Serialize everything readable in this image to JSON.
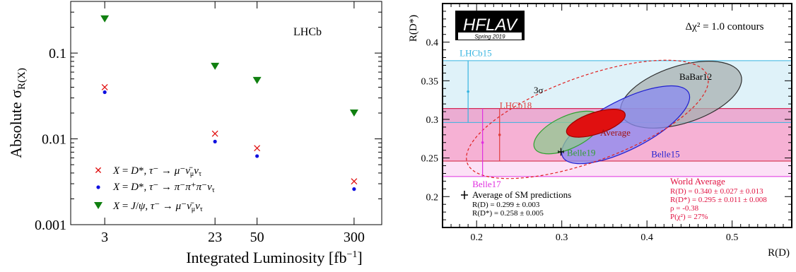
{
  "chart_data": [
    {
      "type": "scatter",
      "title": "",
      "xlabel": "Integrated Luminosity [fb⁻¹]",
      "ylabel": "Absolute σ_R(X)",
      "annotation": "LHCb",
      "x_scale": "log",
      "y_scale": "log",
      "xlim": [
        1.6,
        500
      ],
      "ylim": [
        0.001,
        0.4
      ],
      "x_ticks": [
        3,
        23,
        50,
        300
      ],
      "x_tick_labels": [
        "3",
        "23",
        "50",
        "300"
      ],
      "y_ticks": [
        0.001,
        0.01,
        0.1
      ],
      "y_tick_labels": [
        "0.001",
        "0.01",
        "0.1"
      ],
      "legend_position": "bottom-left",
      "series": [
        {
          "name": "X = D*, τ⁻ → μ⁻ν̄_μν_τ",
          "marker": "x",
          "color": "#e01010",
          "x": [
            3,
            23,
            50,
            300
          ],
          "y": [
            0.04,
            0.0115,
            0.0078,
            0.0032
          ]
        },
        {
          "name": "X = D*, τ⁻ → π⁻π⁺π⁻ν_τ",
          "marker": "dot",
          "color": "#1010e0",
          "x": [
            3,
            23,
            50,
            300
          ],
          "y": [
            0.035,
            0.0093,
            0.0063,
            0.0026
          ]
        },
        {
          "name": "X = J/ψ, τ⁻ → μ⁻ν̄_μν_τ",
          "marker": "triangle-down",
          "color": "#108010",
          "x": [
            3,
            23,
            50,
            300
          ],
          "y": [
            0.25,
            0.07,
            0.048,
            0.02
          ]
        }
      ]
    },
    {
      "type": "scatter",
      "title": "",
      "xlabel": "R(D)",
      "ylabel": "R(D*)",
      "xlim": [
        0.16,
        0.57
      ],
      "ylim": [
        0.16,
        0.45
      ],
      "x_ticks": [
        0.2,
        0.3,
        0.4,
        0.5
      ],
      "x_tick_labels": [
        "0.2",
        "0.3",
        "0.4",
        "0.5"
      ],
      "y_ticks": [
        0.2,
        0.25,
        0.3,
        0.35,
        0.4
      ],
      "y_tick_labels": [
        "0.2",
        "0.25",
        "0.3",
        "0.35",
        "0.4"
      ],
      "logo": {
        "name": "HFLAV",
        "subtitle": "Spring 2019"
      },
      "contour_label": "Δχ² = 1.0 contours",
      "sigma_label": "3σ",
      "bands": [
        {
          "label": "LHCb15",
          "axis": "y",
          "center": 0.336,
          "low": 0.296,
          "high": 0.376,
          "color": "#36b4e0",
          "label_pos": [
            0.19,
            0.382
          ]
        },
        {
          "label": "Belle17",
          "axis": "x",
          "center": 0.27,
          "low": 0.226,
          "high": 0.314,
          "color": "#e030e0",
          "label_pos": [
            0.205,
            0.212
          ]
        }
      ],
      "world_average_band": {
        "center": 0.28,
        "low": 0.246,
        "high": 0.314,
        "color": "#e0506a"
      },
      "points": [
        {
          "label": "LHCb15",
          "x": 0.19,
          "y": 0.336,
          "y_low": 0.296,
          "y_high": 0.376,
          "color": "#36b4e0"
        },
        {
          "label": "Belle17",
          "x": 0.207,
          "y": 0.27,
          "y_low": 0.226,
          "y_high": 0.314,
          "color": "#e030e0"
        },
        {
          "label": "LHCb18",
          "x": 0.227,
          "y": 0.28,
          "y_low": 0.246,
          "y_high": 0.314,
          "color": "#e04040",
          "label_pos": [
            0.237,
            0.318
          ]
        },
        {
          "label": "Average of SM predictions",
          "x": 0.299,
          "y": 0.258,
          "x_err": 0.003,
          "y_err": 0.005,
          "color": "#000000"
        }
      ],
      "ellipses": [
        {
          "label": "BaBar12",
          "cx": 0.44,
          "cy": 0.332,
          "rx": 0.074,
          "ry": 0.037,
          "angle_deg": -18,
          "fill": "#a8b0b0",
          "stroke": "#303030",
          "label_pos": [
            0.438,
            0.351
          ]
        },
        {
          "label": "Belle15",
          "cx": 0.375,
          "cy": 0.293,
          "rx": 0.083,
          "ry": 0.032,
          "angle_deg": -27,
          "fill": "#8a8af0",
          "stroke": "#2020d0",
          "label_pos": [
            0.405,
            0.251
          ]
        },
        {
          "label": "Belle19",
          "cx": 0.307,
          "cy": 0.283,
          "rx": 0.043,
          "ry": 0.021,
          "angle_deg": -25,
          "fill": "#90c890",
          "stroke": "#30a030",
          "label_pos": [
            0.306,
            0.253
          ]
        },
        {
          "label": "Average",
          "cx": 0.34,
          "cy": 0.295,
          "rx": 0.036,
          "ry": 0.014,
          "angle_deg": -18,
          "fill": "#e01010",
          "stroke": "#a00000",
          "label_pos": [
            0.345,
            0.279
          ]
        },
        {
          "label": "",
          "cx": 0.33,
          "cy": 0.3,
          "rx": 0.15,
          "ry": 0.055,
          "angle_deg": -20,
          "fill": "none",
          "stroke": "#e02020",
          "dashed": true
        }
      ],
      "sm_legend": {
        "title": "Average of SM predictions",
        "lines": [
          "R(D) = 0.299 ± 0.003",
          "R(D*) = 0.258 ± 0.005"
        ]
      },
      "world_average_text": {
        "title": "World Average",
        "lines": [
          "R(D) = 0.340 ± 0.027 ± 0.013",
          "R(D*) = 0.295 ± 0.011 ± 0.008",
          "ρ = -0.38",
          "P(χ²) = 27%"
        ]
      }
    }
  ]
}
